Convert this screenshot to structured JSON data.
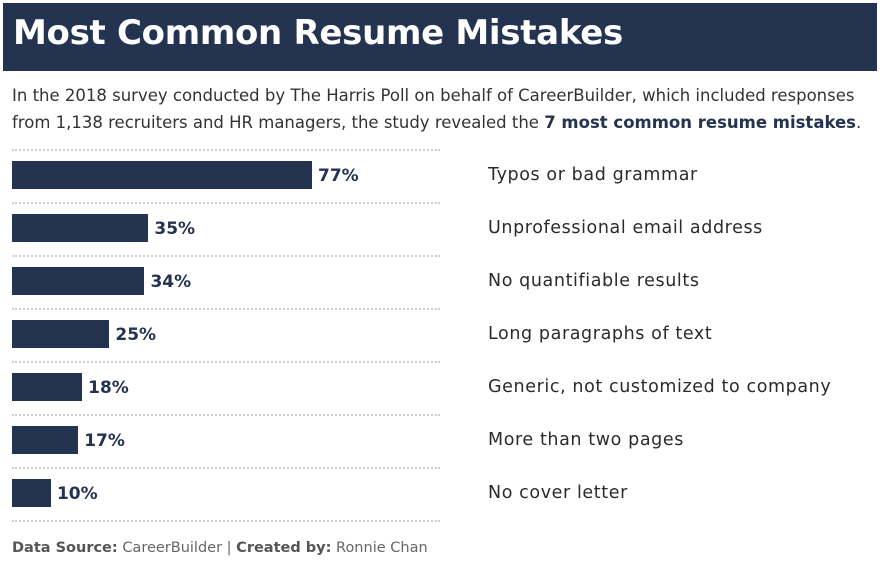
{
  "title": "Most Common Resume Mistakes",
  "intro": {
    "text": "In the 2018 survey conducted by The Harris Poll on behalf of CareerBuilder, which included responses from 1,138 recruiters and HR managers, the study revealed the ",
    "highlight": "7 most common resume mistakes",
    "end": "."
  },
  "colors": {
    "accent": "#243350",
    "divider": "#cfcfcf"
  },
  "chart_data": {
    "type": "bar",
    "orientation": "horizontal",
    "categories": [
      "Typos or bad grammar",
      "Unprofessional email address",
      "No quantifiable results",
      "Long paragraphs of text",
      "Generic, not customized to company",
      "More than two pages",
      "No cover letter"
    ],
    "values": [
      77,
      35,
      34,
      25,
      18,
      17,
      10
    ],
    "value_labels": [
      "77%",
      "35%",
      "34%",
      "25%",
      "18%",
      "17%",
      "10%"
    ],
    "xlim": [
      0,
      100
    ],
    "grid": false
  },
  "footer": {
    "source_label": "Data Source:",
    "source": "CareerBuilder",
    "separator": "|",
    "created_label": "Created by:",
    "author": "Ronnie Chan"
  }
}
